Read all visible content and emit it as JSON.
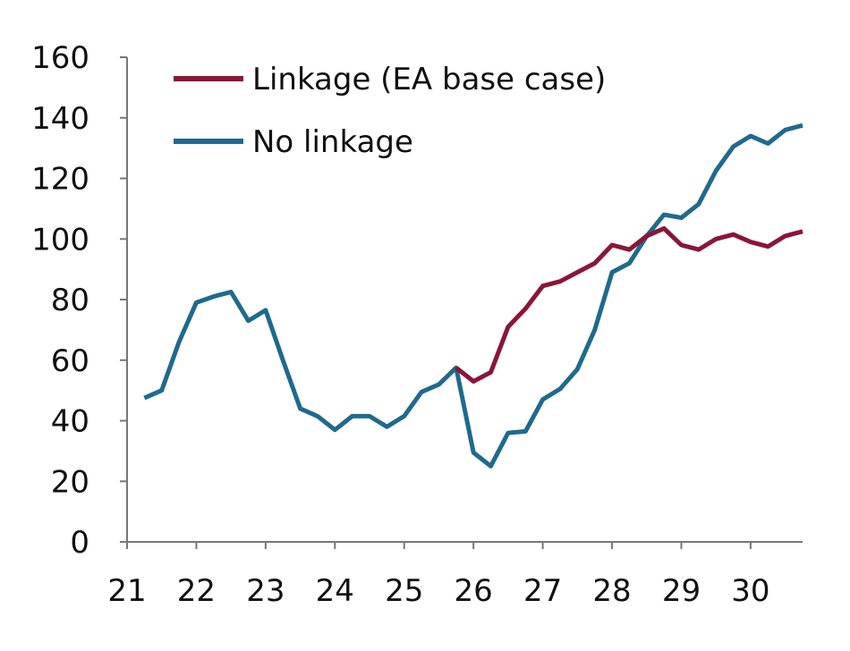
{
  "chart_data": {
    "type": "line",
    "title": "",
    "xlabel": "",
    "ylabel": "",
    "ylim": [
      0,
      160
    ],
    "xlim": [
      21.0,
      30.75
    ],
    "y_ticks": [
      0,
      20,
      40,
      60,
      80,
      100,
      120,
      140,
      160
    ],
    "x_ticks": [
      21,
      22,
      23,
      24,
      25,
      26,
      27,
      28,
      29,
      30
    ],
    "x_tick_labels": [
      "21",
      "22",
      "23",
      "24",
      "25",
      "26",
      "27",
      "28",
      "29",
      "30"
    ],
    "y_tick_labels": [
      "0",
      "20",
      "40",
      "60",
      "80",
      "100",
      "120",
      "140",
      "160"
    ],
    "grid": false,
    "legend_position": "top-left",
    "series": [
      {
        "name": "Linkage (EA base case)",
        "color": "#8b1538",
        "points": [
          [
            25.75,
            57.5
          ],
          [
            26.0,
            53.0
          ],
          [
            26.25,
            56.0
          ],
          [
            26.5,
            71.0
          ],
          [
            26.75,
            77.0
          ],
          [
            27.0,
            84.5
          ],
          [
            27.25,
            86.0
          ],
          [
            27.5,
            89.0
          ],
          [
            27.75,
            92.0
          ],
          [
            28.0,
            98.0
          ],
          [
            28.25,
            96.5
          ],
          [
            28.5,
            101.0
          ],
          [
            28.75,
            103.5
          ],
          [
            29.0,
            98.0
          ],
          [
            29.25,
            96.5
          ],
          [
            29.5,
            100.0
          ],
          [
            29.75,
            101.5
          ],
          [
            30.0,
            99.0
          ],
          [
            30.25,
            97.5
          ],
          [
            30.5,
            101.0
          ],
          [
            30.75,
            102.5
          ]
        ]
      },
      {
        "name": "No linkage",
        "color": "#1f6a8c",
        "points": [
          [
            21.25,
            47.5
          ],
          [
            21.5,
            50.0
          ],
          [
            21.75,
            66.0
          ],
          [
            22.0,
            79.0
          ],
          [
            22.25,
            81.0
          ],
          [
            22.5,
            82.5
          ],
          [
            22.75,
            73.0
          ],
          [
            23.0,
            76.5
          ],
          [
            23.25,
            60.0
          ],
          [
            23.5,
            44.0
          ],
          [
            23.75,
            41.5
          ],
          [
            24.0,
            37.0
          ],
          [
            24.25,
            41.5
          ],
          [
            24.5,
            41.5
          ],
          [
            24.75,
            38.0
          ],
          [
            25.0,
            41.5
          ],
          [
            25.25,
            49.5
          ],
          [
            25.5,
            52.0
          ],
          [
            25.75,
            57.5
          ],
          [
            26.0,
            29.5
          ],
          [
            26.25,
            25.0
          ],
          [
            26.5,
            36.0
          ],
          [
            26.75,
            36.5
          ],
          [
            27.0,
            47.0
          ],
          [
            27.25,
            50.5
          ],
          [
            27.5,
            57.0
          ],
          [
            27.75,
            70.0
          ],
          [
            28.0,
            89.0
          ],
          [
            28.25,
            92.0
          ],
          [
            28.5,
            101.0
          ],
          [
            28.75,
            108.0
          ],
          [
            29.0,
            107.0
          ],
          [
            29.25,
            111.5
          ],
          [
            29.5,
            122.5
          ],
          [
            29.75,
            130.5
          ],
          [
            30.0,
            134.0
          ],
          [
            30.25,
            131.5
          ],
          [
            30.5,
            136.0
          ],
          [
            30.75,
            137.5
          ]
        ]
      }
    ]
  }
}
